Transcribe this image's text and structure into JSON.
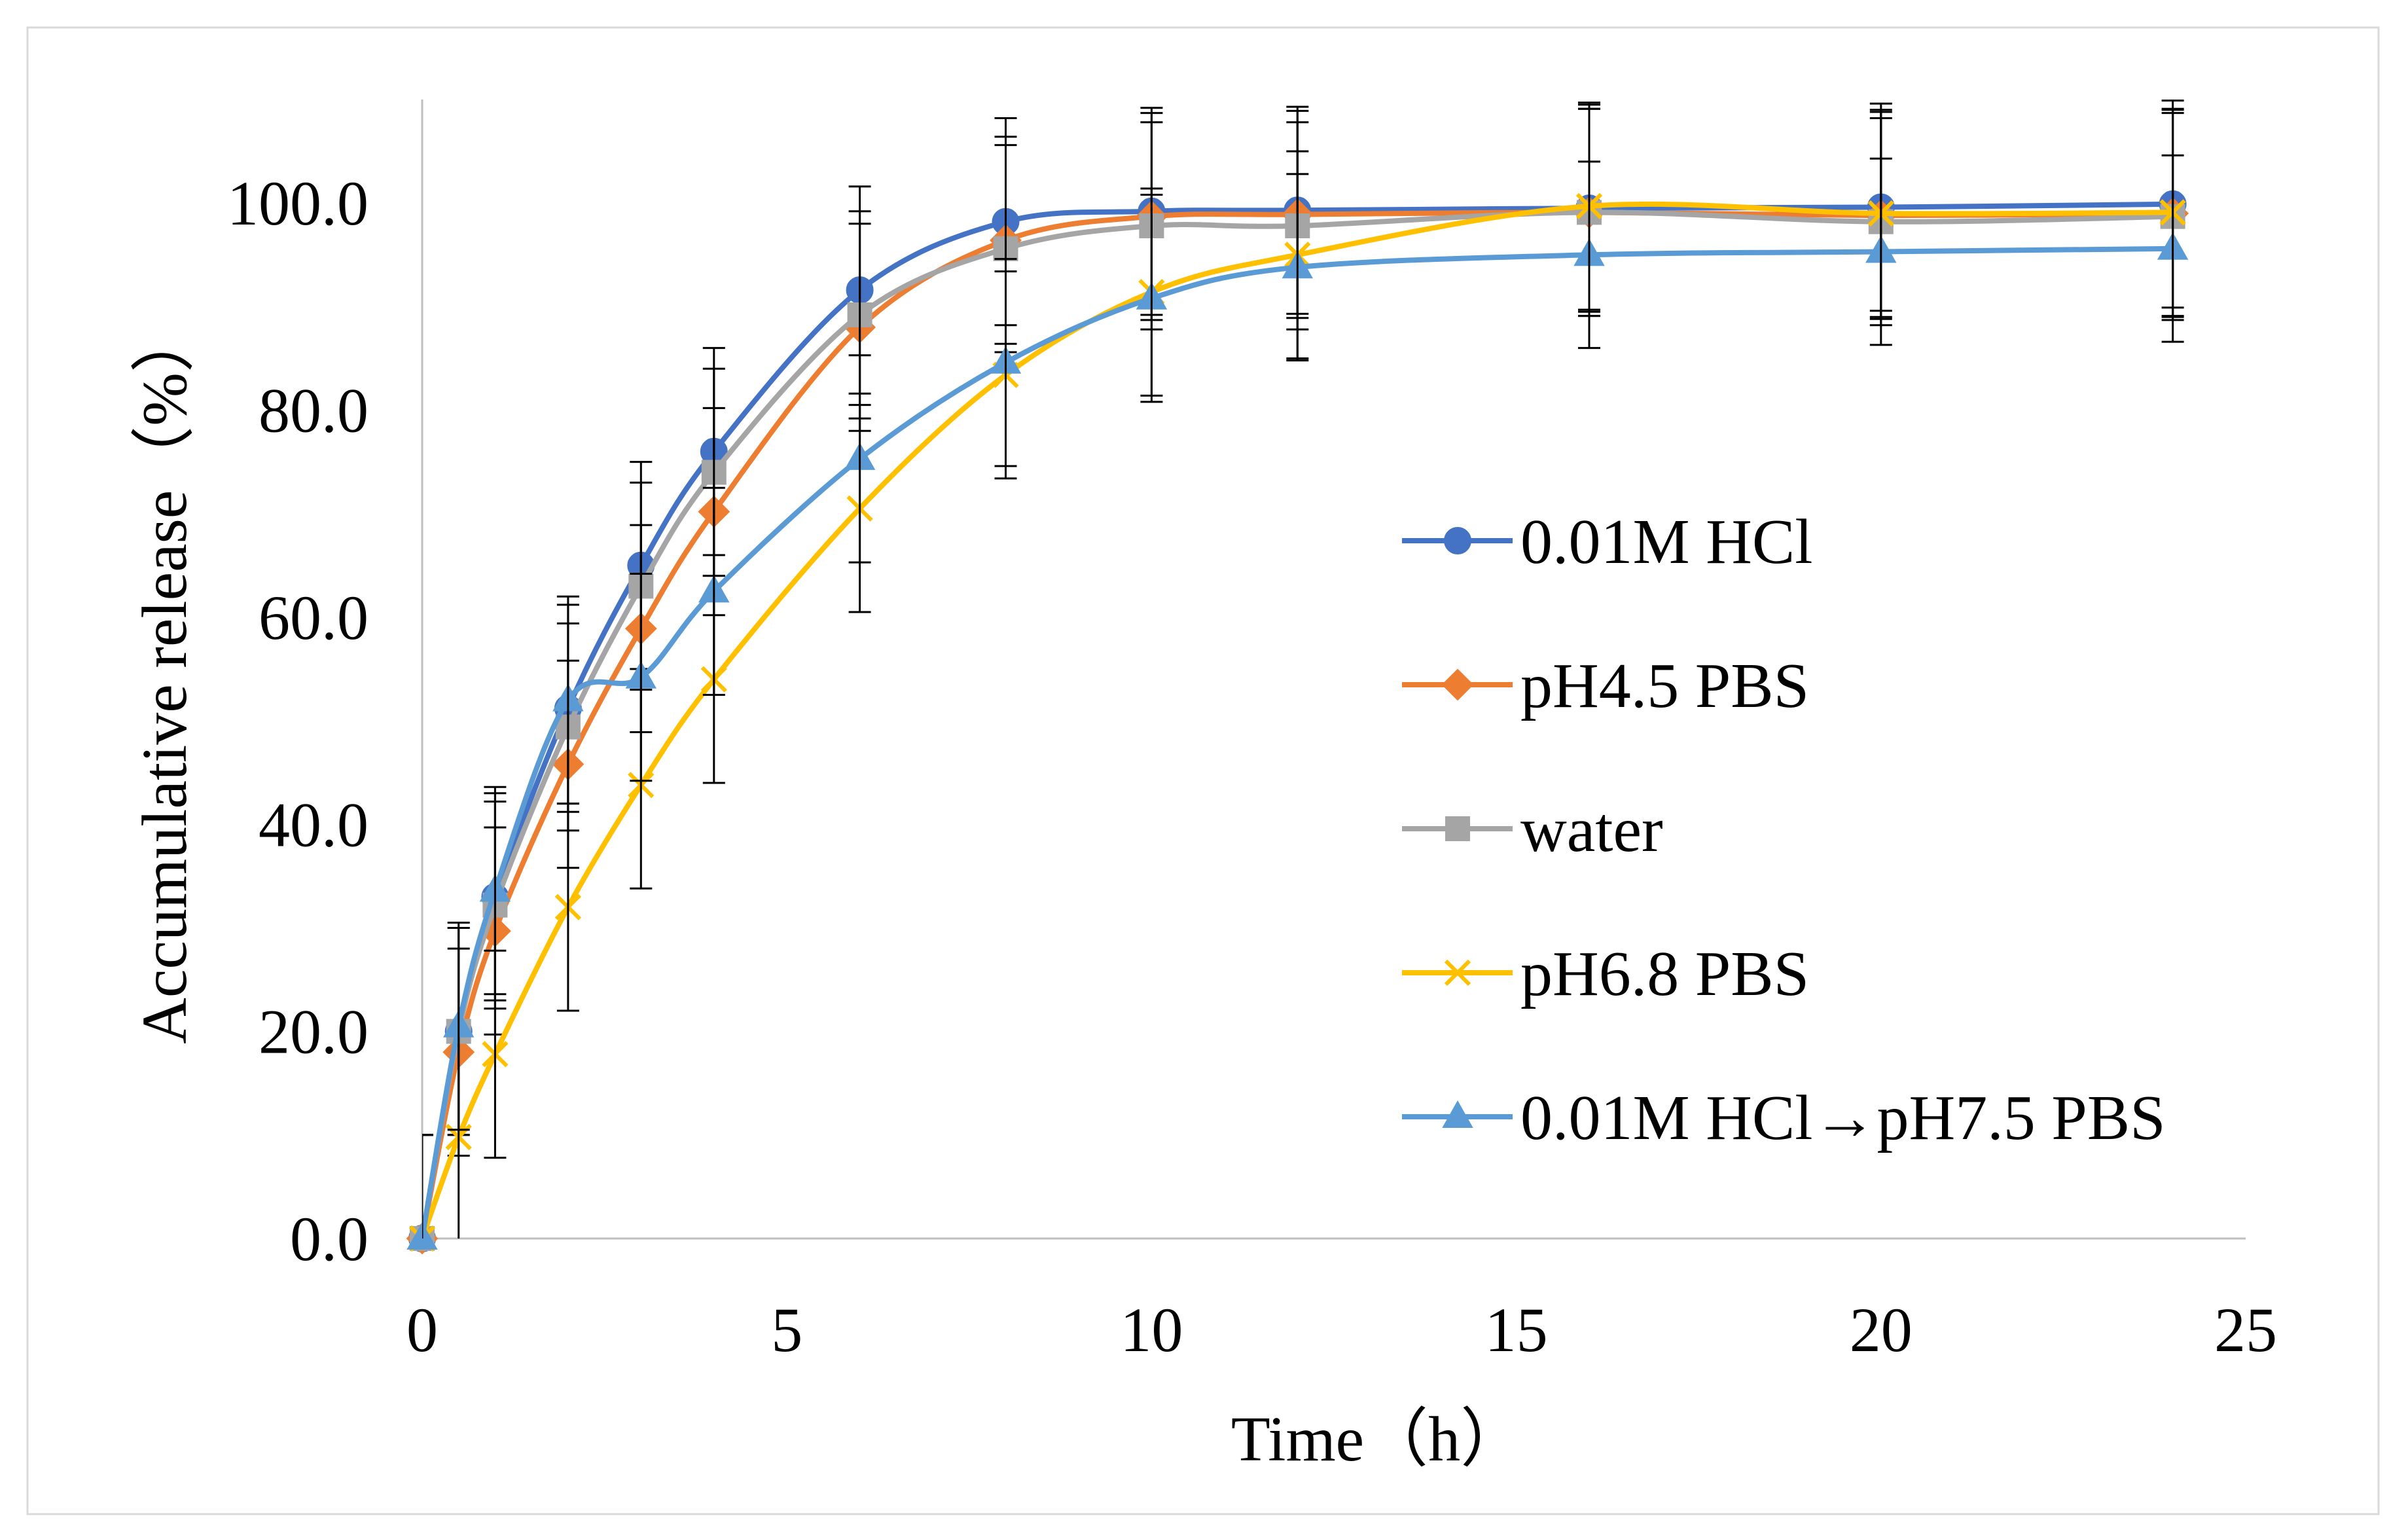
{
  "chart_data": {
    "type": "line",
    "smoothed": true,
    "xlabel": "Time（h）",
    "ylabel": "Accumulative release（%）",
    "xlim": [
      0,
      25
    ],
    "ylim": [
      0,
      110
    ],
    "x_ticks": [
      "0",
      "5",
      "10",
      "15",
      "20",
      "25"
    ],
    "y_ticks": [
      "0.0",
      "20.0",
      "40.0",
      "60.0",
      "80.0",
      "100.0"
    ],
    "grid": false,
    "legend_position": "right",
    "error_bar_color": "#000000",
    "x": [
      0,
      0.5,
      1,
      2,
      3,
      4,
      6,
      8,
      10,
      12,
      16,
      20,
      24
    ],
    "series": [
      {
        "name": "0.01M HCl",
        "color": "#4472C4",
        "marker": "circle",
        "values": [
          0,
          20.0,
          33.0,
          51.2,
          65.0,
          76.0,
          91.6,
          98.2,
          99.2,
          99.3,
          99.5,
          99.6,
          99.9
        ],
        "error": [
          10,
          10,
          10,
          10,
          10,
          10,
          10,
          10,
          10,
          10,
          10,
          10,
          10
        ]
      },
      {
        "name": "pH4.5 PBS",
        "color": "#ED7D31",
        "marker": "diamond",
        "values": [
          0,
          18.0,
          29.7,
          45.8,
          58.9,
          70.2,
          88.0,
          96.4,
          98.7,
          98.9,
          99.1,
          98.8,
          99.0
        ],
        "error": [
          10,
          10,
          10,
          10,
          10,
          10,
          10,
          10,
          10,
          10,
          10,
          10,
          10
        ]
      },
      {
        "name": "water",
        "color": "#A5A5A5",
        "marker": "square",
        "values": [
          0,
          20.0,
          32.2,
          49.4,
          63.0,
          74.0,
          89.2,
          95.6,
          97.8,
          97.8,
          99.1,
          98.2,
          98.7
        ],
        "error": [
          10,
          10,
          10,
          10,
          10,
          10,
          10,
          10,
          10,
          10,
          10,
          10,
          10
        ]
      },
      {
        "name": "pH6.8 PBS",
        "color": "#FFC000",
        "marker": "x",
        "values": [
          0,
          9.8,
          17.8,
          32.0,
          43.8,
          54.0,
          70.5,
          83.4,
          91.4,
          95.0,
          99.7,
          99.0,
          99.1
        ],
        "error": [
          10,
          10,
          10,
          10,
          10,
          10,
          10,
          10,
          10,
          10,
          10,
          10,
          10
        ]
      },
      {
        "name": "0.01M HCl→pH7.5 PBS",
        "color": "#5B9BD5",
        "marker": "triangle",
        "values": [
          0,
          20.5,
          33.6,
          52.0,
          54.2,
          62.5,
          75.3,
          84.6,
          90.8,
          93.8,
          95.0,
          95.3,
          95.6
        ],
        "error": [
          10,
          10,
          10,
          10,
          10,
          10,
          10,
          10,
          10,
          9,
          9,
          9,
          9
        ]
      }
    ]
  }
}
